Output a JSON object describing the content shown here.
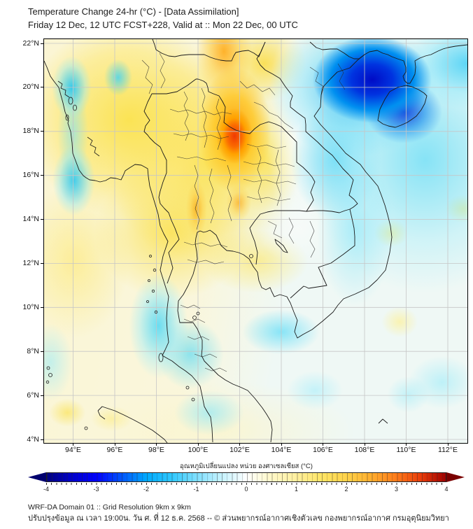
{
  "header": {
    "title": "Temperature Change 24-hr (°C) - [Data Assimilation]",
    "subtitle": "Friday 12 Dec, 12 UTC FCST+228, Valid at :: Mon 22 Dec, 00 UTC"
  },
  "map": {
    "lat_labels": [
      "22°N",
      "20°N",
      "18°N",
      "16°N",
      "14°N",
      "12°N",
      "10°N",
      "8°N",
      "6°N",
      "4°N"
    ],
    "lon_labels": [
      "94°E",
      "96°E",
      "98°E",
      "100°E",
      "102°E",
      "104°E",
      "106°E",
      "108°E",
      "110°E",
      "112°E"
    ],
    "field_description": "24-hr temperature change shaded: warming (yellow-orange-red) over Myanmar/Thailand/Laos with maximum near 102°E 18°N, strong cooling (dark blue) over Gulf of Tonkin/Hainan near 108-110°E 19-21°N, light cooling along Vietnam coast, Bay of Bengal and southern Thai peninsula"
  },
  "colorbar": {
    "label": "อุณหภูมิเปลี่ยนแปลง หน่วย องศาเซลเซียส (°C)",
    "tick_labels": [
      "-4",
      "-3",
      "-2",
      "-1",
      "0",
      "1",
      "2",
      "3",
      "4"
    ],
    "min": -4,
    "max": 4,
    "gradient_stops": [
      "#000080",
      "#0000ff",
      "#00aaff",
      "#7fdfff",
      "#ffffff",
      "#ffef9e",
      "#ffd34a",
      "#ff7c1a",
      "#a00000"
    ],
    "left_arrow_color": "#00006e",
    "right_arrow_color": "#7a0000"
  },
  "footer": {
    "line1": "WRF-DA Domain 01 :: Grid Resolution 9km x 9km",
    "line2": "ปรับปรุงข้อมูล ณ เวลา 19:00น. วัน ศ. ที่ 12 ธ.ค. 2568 -- © ส่วนพยากรณ์อากาศเชิงตัวเลข กองพยากรณ์อากาศ กรมอุตุนิยมวิทยา"
  }
}
